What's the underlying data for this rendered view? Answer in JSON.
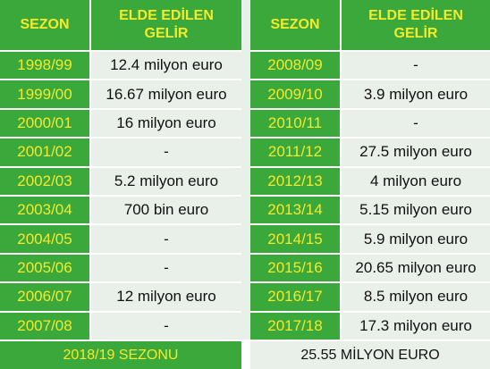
{
  "headers": {
    "season": "SEZON",
    "income": "ELDE EDİLEN\nGELİR"
  },
  "left_rows": [
    {
      "season": "1998/99",
      "income": "12.4 milyon euro"
    },
    {
      "season": "1999/00",
      "income": "16.67 milyon euro"
    },
    {
      "season": "2000/01",
      "income": "16 milyon euro"
    },
    {
      "season": "2001/02",
      "income": "-"
    },
    {
      "season": "2002/03",
      "income": "5.2 milyon euro"
    },
    {
      "season": "2003/04",
      "income": "700 bin euro"
    },
    {
      "season": "2004/05",
      "income": "-"
    },
    {
      "season": "2005/06",
      "income": "-"
    },
    {
      "season": "2006/07",
      "income": "12 milyon euro"
    },
    {
      "season": "2007/08",
      "income": "-"
    }
  ],
  "right_rows": [
    {
      "season": "2008/09",
      "income": "-"
    },
    {
      "season": "2009/10",
      "income": "3.9 milyon euro"
    },
    {
      "season": "2010/11",
      "income": "-"
    },
    {
      "season": "2011/12",
      "income": "27.5 milyon euro"
    },
    {
      "season": "2012/13",
      "income": "4 milyon euro"
    },
    {
      "season": "2013/14",
      "income": "5.15 milyon euro"
    },
    {
      "season": "2014/15",
      "income": "5.9 milyon euro"
    },
    {
      "season": "2015/16",
      "income": "20.65 milyon euro"
    },
    {
      "season": "2016/17",
      "income": "8.5 milyon euro"
    },
    {
      "season": "2017/18",
      "income": "17.3 milyon euro"
    }
  ],
  "footer": {
    "label": "2018/19 SEZONU",
    "value": "25.55 MİLYON EURO"
  },
  "colors": {
    "green": "#3aa83a",
    "yellow": "#f5ea2b",
    "cell_bg": "#e9efe9"
  }
}
